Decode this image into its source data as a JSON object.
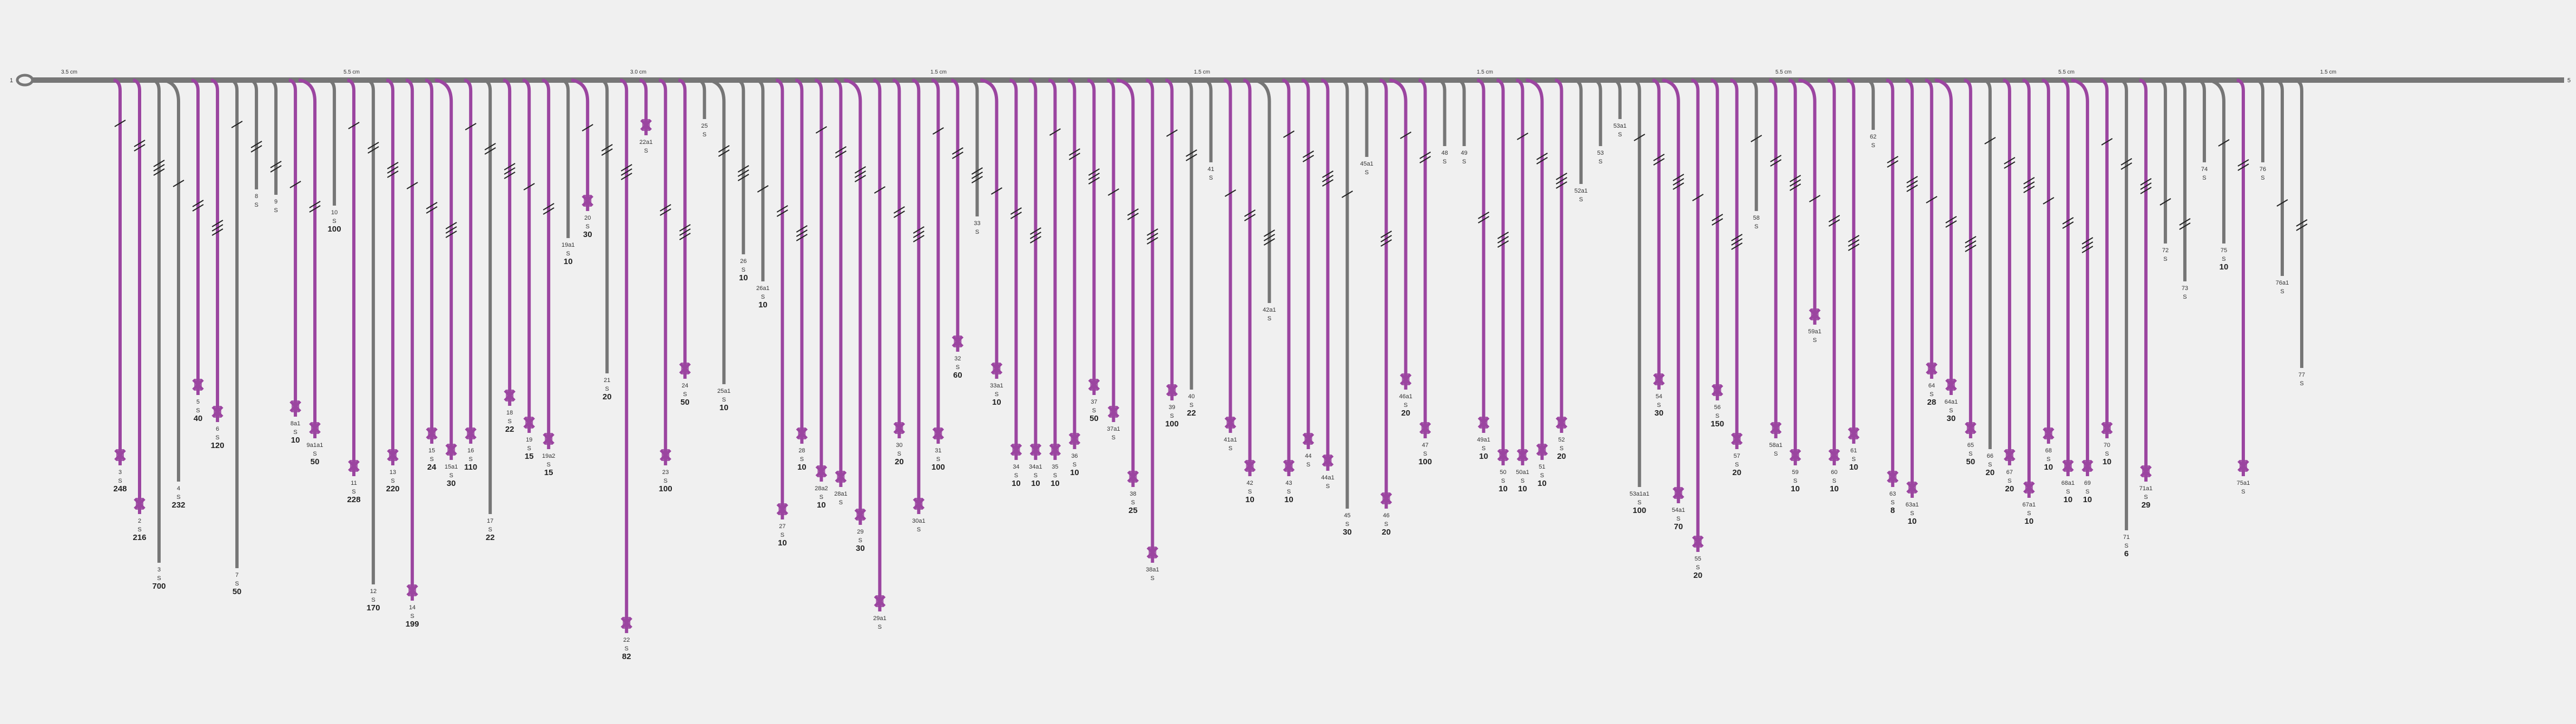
{
  "diagram": {
    "start_label": "1",
    "end_label": "5",
    "distance_labels": [
      "3.5 cm",
      "5.5 cm",
      "3.0 cm",
      "1.5 cm",
      "1.5 cm",
      "1.5 cm",
      "5.5 cm",
      "5.5 cm",
      "1.5 cm"
    ],
    "colors": {
      "trunk": "#777777",
      "unit": "#9b45a0",
      "grey_branch": "#767676",
      "bg": "#f0f0f0"
    },
    "branches": [
      {
        "id": "1",
        "color": "unit",
        "labels": [
          "3",
          "S",
          "248"
        ]
      },
      {
        "id": "2",
        "color": "unit",
        "labels": [
          "2",
          "S",
          "216"
        ]
      },
      {
        "id": "3",
        "color": "grey",
        "labels": [
          "3",
          "S",
          "700"
        ]
      },
      {
        "id": "4",
        "color": "grey",
        "labels": [
          "4",
          "S",
          "232"
        ]
      },
      {
        "id": "5",
        "color": "unit",
        "labels": [
          "5",
          "S",
          "40"
        ]
      },
      {
        "id": "6",
        "color": "unit",
        "labels": [
          "6",
          "S",
          "120"
        ]
      },
      {
        "id": "7",
        "color": "grey",
        "labels": [
          "7",
          "S",
          "50"
        ]
      },
      {
        "id": "8",
        "color": "grey",
        "labels": [
          "8",
          "S"
        ]
      },
      {
        "id": "9",
        "color": "grey",
        "labels": [
          "9",
          "S"
        ]
      },
      {
        "id": "10",
        "color": "unit",
        "labels": [
          "8a1",
          "S",
          "10"
        ]
      },
      {
        "id": "11",
        "color": "unit",
        "labels": [
          "9a1a1",
          "S",
          "50"
        ]
      },
      {
        "id": "12",
        "color": "grey",
        "labels": [
          "10",
          "S",
          "100"
        ]
      },
      {
        "id": "13",
        "color": "unit",
        "labels": [
          "11",
          "S",
          "228"
        ]
      },
      {
        "id": "14",
        "color": "grey",
        "labels": [
          "12",
          "S",
          "170"
        ]
      },
      {
        "id": "15",
        "color": "unit",
        "labels": [
          "13",
          "S",
          "220"
        ]
      },
      {
        "id": "16",
        "color": "unit",
        "labels": [
          "14",
          "S",
          "199"
        ]
      },
      {
        "id": "17",
        "color": "unit",
        "labels": [
          "15",
          "S",
          "24"
        ]
      },
      {
        "id": "18",
        "color": "unit",
        "labels": [
          "15a1",
          "S",
          "30"
        ]
      },
      {
        "id": "19",
        "color": "unit",
        "labels": [
          "16",
          "S",
          "110"
        ]
      },
      {
        "id": "20",
        "color": "grey",
        "labels": [
          "17",
          "S",
          "22"
        ]
      },
      {
        "id": "21",
        "color": "unit",
        "labels": [
          "18",
          "S",
          "22"
        ]
      },
      {
        "id": "22",
        "color": "unit",
        "labels": [
          "19",
          "S",
          "15"
        ]
      },
      {
        "id": "23",
        "color": "unit",
        "labels": [
          "19a2",
          "S",
          "15"
        ]
      },
      {
        "id": "24",
        "color": "grey",
        "labels": [
          "19a1",
          "S",
          "10"
        ]
      },
      {
        "id": "25",
        "color": "unit",
        "labels": [
          "20",
          "S",
          "30"
        ]
      },
      {
        "id": "26",
        "color": "grey",
        "labels": [
          "21",
          "S",
          "20"
        ]
      },
      {
        "id": "27",
        "color": "unit",
        "labels": [
          "22",
          "S",
          "82"
        ]
      },
      {
        "id": "28",
        "color": "unit",
        "labels": [
          "22a1",
          "S"
        ]
      },
      {
        "id": "29",
        "color": "unit",
        "labels": [
          "23",
          "S",
          "100"
        ]
      },
      {
        "id": "30",
        "color": "unit",
        "labels": [
          "24",
          "S",
          "50"
        ]
      },
      {
        "id": "31",
        "color": "grey",
        "labels": [
          "25",
          "S"
        ]
      },
      {
        "id": "32",
        "color": "grey",
        "labels": [
          "25a1",
          "S",
          "10"
        ]
      },
      {
        "id": "33",
        "color": "grey",
        "labels": [
          "26",
          "S",
          "10"
        ]
      },
      {
        "id": "34",
        "color": "grey",
        "labels": [
          "26a1",
          "S",
          "10"
        ]
      },
      {
        "id": "35",
        "color": "unit",
        "labels": [
          "27",
          "S",
          "10"
        ]
      },
      {
        "id": "36",
        "color": "unit",
        "labels": [
          "28",
          "S",
          "10"
        ]
      },
      {
        "id": "37",
        "color": "unit",
        "labels": [
          "28a2",
          "S",
          "10"
        ]
      },
      {
        "id": "38",
        "color": "unit",
        "labels": [
          "28a1",
          "S"
        ]
      },
      {
        "id": "39",
        "color": "unit",
        "labels": [
          "29",
          "S",
          "30"
        ]
      },
      {
        "id": "40",
        "color": "unit",
        "labels": [
          "29a1",
          "S"
        ]
      },
      {
        "id": "41",
        "color": "unit",
        "labels": [
          "30",
          "S",
          "20"
        ]
      },
      {
        "id": "42",
        "color": "unit",
        "labels": [
          "30a1",
          "S"
        ]
      },
      {
        "id": "43",
        "color": "unit",
        "labels": [
          "31",
          "S",
          "100"
        ]
      },
      {
        "id": "44",
        "color": "unit",
        "labels": [
          "32",
          "S",
          "60"
        ]
      },
      {
        "id": "45",
        "color": "grey",
        "labels": [
          "33",
          "S"
        ]
      },
      {
        "id": "46",
        "color": "unit",
        "labels": [
          "33a1",
          "S",
          "10"
        ]
      },
      {
        "id": "47",
        "color": "unit",
        "labels": [
          "34",
          "S",
          "10"
        ]
      },
      {
        "id": "48",
        "color": "unit",
        "labels": [
          "34a1",
          "S",
          "10"
        ]
      },
      {
        "id": "49",
        "color": "unit",
        "labels": [
          "35",
          "S",
          "10"
        ]
      },
      {
        "id": "50",
        "color": "unit",
        "labels": [
          "36",
          "S",
          "10"
        ]
      },
      {
        "id": "51",
        "color": "unit",
        "labels": [
          "37",
          "S",
          "50"
        ]
      },
      {
        "id": "52",
        "color": "unit",
        "labels": [
          "37a1",
          "S"
        ]
      },
      {
        "id": "53",
        "color": "unit",
        "labels": [
          "38",
          "S",
          "25"
        ]
      },
      {
        "id": "54",
        "color": "unit",
        "labels": [
          "38a1",
          "S"
        ]
      },
      {
        "id": "55",
        "color": "unit",
        "labels": [
          "39",
          "S",
          "100"
        ]
      },
      {
        "id": "56",
        "color": "grey",
        "labels": [
          "40",
          "S",
          "22"
        ]
      },
      {
        "id": "57",
        "color": "grey",
        "labels": [
          "41",
          "S"
        ]
      },
      {
        "id": "58",
        "color": "unit",
        "labels": [
          "41a1",
          "S"
        ]
      },
      {
        "id": "59",
        "color": "unit",
        "labels": [
          "42",
          "S",
          "10"
        ]
      },
      {
        "id": "60",
        "color": "grey",
        "labels": [
          "42a1",
          "S"
        ]
      },
      {
        "id": "61",
        "color": "unit",
        "labels": [
          "43",
          "S",
          "10"
        ]
      },
      {
        "id": "62",
        "color": "unit",
        "labels": [
          "44",
          "S"
        ]
      },
      {
        "id": "63",
        "color": "unit",
        "labels": [
          "44a1",
          "S"
        ]
      },
      {
        "id": "64",
        "color": "grey",
        "labels": [
          "45",
          "S",
          "30"
        ]
      },
      {
        "id": "65",
        "color": "grey",
        "labels": [
          "45a1",
          "S"
        ]
      },
      {
        "id": "66",
        "color": "unit",
        "labels": [
          "46",
          "S",
          "20"
        ]
      },
      {
        "id": "67",
        "color": "unit",
        "labels": [
          "46a1",
          "S",
          "20"
        ]
      },
      {
        "id": "68",
        "color": "unit",
        "labels": [
          "47",
          "S",
          "100"
        ]
      },
      {
        "id": "69",
        "color": "grey",
        "labels": [
          "48",
          "S"
        ]
      },
      {
        "id": "70",
        "color": "grey",
        "labels": [
          "49",
          "S"
        ]
      },
      {
        "id": "71",
        "color": "unit",
        "labels": [
          "49a1",
          "S",
          "10"
        ]
      },
      {
        "id": "72",
        "color": "unit",
        "labels": [
          "50",
          "S",
          "10"
        ]
      },
      {
        "id": "73",
        "color": "unit",
        "labels": [
          "50a1",
          "S",
          "10"
        ]
      },
      {
        "id": "74",
        "color": "unit",
        "labels": [
          "51",
          "S",
          "10"
        ]
      },
      {
        "id": "75",
        "color": "unit",
        "labels": [
          "52",
          "S",
          "20"
        ]
      },
      {
        "id": "76",
        "color": "grey",
        "labels": [
          "52a1",
          "S"
        ]
      },
      {
        "id": "77",
        "color": "grey",
        "labels": [
          "53",
          "S"
        ]
      },
      {
        "id": "78",
        "color": "grey",
        "labels": [
          "53a1",
          "S"
        ]
      },
      {
        "id": "79",
        "color": "grey",
        "labels": [
          "53a1a1",
          "S",
          "100"
        ]
      },
      {
        "id": "80",
        "color": "unit",
        "labels": [
          "54",
          "S",
          "30"
        ]
      },
      {
        "id": "81",
        "color": "unit",
        "labels": [
          "54a1",
          "S",
          "70"
        ]
      },
      {
        "id": "82",
        "color": "unit",
        "labels": [
          "55",
          "S",
          "20"
        ]
      },
      {
        "id": "83",
        "color": "unit",
        "labels": [
          "56",
          "S",
          "150"
        ]
      },
      {
        "id": "84",
        "color": "unit",
        "labels": [
          "57",
          "S",
          "20"
        ]
      },
      {
        "id": "85",
        "color": "grey",
        "labels": [
          "58",
          "S"
        ]
      },
      {
        "id": "86",
        "color": "unit",
        "labels": [
          "58a1",
          "S"
        ]
      },
      {
        "id": "87",
        "color": "unit",
        "labels": [
          "59",
          "S",
          "10"
        ]
      },
      {
        "id": "88",
        "color": "unit",
        "labels": [
          "59a1",
          "S"
        ]
      },
      {
        "id": "89",
        "color": "unit",
        "labels": [
          "60",
          "S",
          "10"
        ]
      },
      {
        "id": "90",
        "color": "unit",
        "labels": [
          "61",
          "S",
          "10"
        ]
      },
      {
        "id": "91",
        "color": "grey",
        "labels": [
          "62",
          "S"
        ]
      },
      {
        "id": "92",
        "color": "unit",
        "labels": [
          "63",
          "S",
          "8"
        ]
      },
      {
        "id": "93",
        "color": "unit",
        "labels": [
          "63a1",
          "S",
          "10"
        ]
      },
      {
        "id": "94",
        "color": "unit",
        "labels": [
          "64",
          "S",
          "28"
        ]
      },
      {
        "id": "95",
        "color": "unit",
        "labels": [
          "64a1",
          "S",
          "30"
        ]
      },
      {
        "id": "96",
        "color": "unit",
        "labels": [
          "65",
          "S",
          "50"
        ]
      },
      {
        "id": "97",
        "color": "grey",
        "labels": [
          "66",
          "S",
          "20"
        ]
      },
      {
        "id": "98",
        "color": "unit",
        "labels": [
          "67",
          "S",
          "20"
        ]
      },
      {
        "id": "99",
        "color": "unit",
        "labels": [
          "67a1",
          "S",
          "10"
        ]
      },
      {
        "id": "100",
        "color": "unit",
        "labels": [
          "68",
          "S",
          "10"
        ]
      },
      {
        "id": "101",
        "color": "unit",
        "labels": [
          "68a1",
          "S",
          "10"
        ]
      },
      {
        "id": "102",
        "color": "unit",
        "labels": [
          "69",
          "S",
          "10"
        ]
      },
      {
        "id": "103",
        "color": "unit",
        "labels": [
          "70",
          "S",
          "10"
        ]
      },
      {
        "id": "104",
        "color": "grey",
        "labels": [
          "71",
          "S",
          "6"
        ]
      },
      {
        "id": "105",
        "color": "unit",
        "labels": [
          "71a1",
          "S",
          "29"
        ]
      },
      {
        "id": "106",
        "color": "grey",
        "labels": [
          "72",
          "S"
        ]
      },
      {
        "id": "107",
        "color": "grey",
        "labels": [
          "73",
          "S"
        ]
      },
      {
        "id": "108",
        "color": "grey",
        "labels": [
          "74",
          "S"
        ]
      },
      {
        "id": "109",
        "color": "grey",
        "labels": [
          "75",
          "S",
          "10"
        ]
      },
      {
        "id": "110",
        "color": "unit",
        "labels": [
          "75a1",
          "S"
        ]
      },
      {
        "id": "111",
        "color": "grey",
        "labels": [
          "76",
          "S"
        ]
      },
      {
        "id": "112",
        "color": "grey",
        "labels": [
          "76a1",
          "S"
        ]
      },
      {
        "id": "113",
        "color": "grey",
        "labels": [
          "77",
          "S"
        ]
      }
    ]
  }
}
